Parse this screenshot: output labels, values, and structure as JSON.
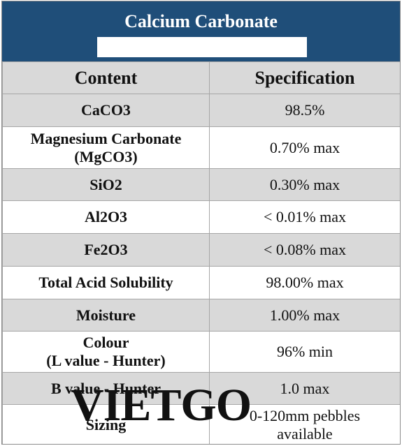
{
  "title": "Calcium Carbonate",
  "title_box_text": "",
  "headers": {
    "content": "Content",
    "specification": "Specification"
  },
  "rows": [
    {
      "content": "CaCO3",
      "spec": "98.5%"
    },
    {
      "content": "Magnesium Carbonate\n(MgCO3)",
      "spec": "0.70% max"
    },
    {
      "content": "SiO2",
      "spec": "0.30% max"
    },
    {
      "content": "Al2O3",
      "spec": "< 0.01% max"
    },
    {
      "content": "Fe2O3",
      "spec": "< 0.08% max"
    },
    {
      "content": "Total Acid Solubility",
      "spec": "98.00% max"
    },
    {
      "content": "Moisture",
      "spec": "1.00% max"
    },
    {
      "content": "Colour\n(L value - Hunter)",
      "spec": "96% min"
    },
    {
      "content": "B value - Hunter",
      "spec": "1.0 max"
    },
    {
      "content": "Sizing",
      "spec": "0-120mm pebbles\navailable"
    }
  ],
  "watermark": "VIETGO",
  "colors": {
    "title_band": "#1f4e79",
    "shaded_row": "#d9d9d9"
  }
}
